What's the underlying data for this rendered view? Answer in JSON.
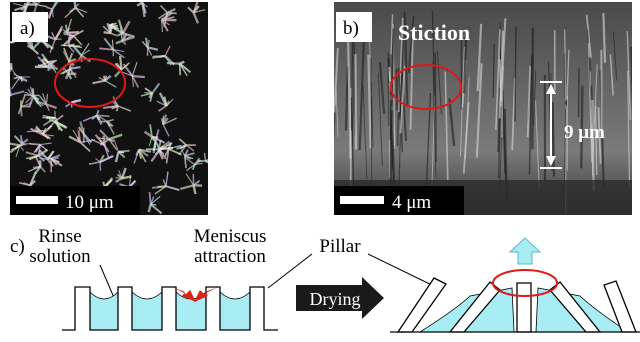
{
  "panel_a": {
    "label": "a)",
    "scale_bar": "10 μm"
  },
  "panel_b": {
    "label": "b)",
    "title": "Stiction",
    "height": "9 μm",
    "scale_bar": "4 μm"
  },
  "panel_c": {
    "label": "c)",
    "rinse_solution": [
      "Rinse",
      "solution"
    ],
    "meniscus_attraction": [
      "Meniscus",
      "attraction"
    ],
    "pillar": "Pillar",
    "process": "Drying"
  }
}
